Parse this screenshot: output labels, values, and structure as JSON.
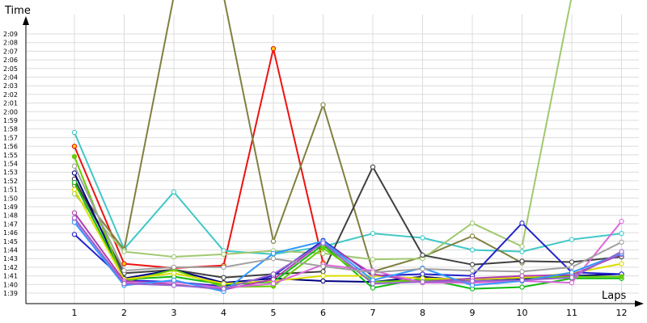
{
  "chart_data": {
    "type": "line",
    "ylabel": "Time",
    "xlabel": "Laps",
    "x": [
      1,
      2,
      3,
      4,
      5,
      6,
      7,
      8,
      9,
      10,
      11,
      12
    ],
    "ylim": [
      98.5,
      130.5
    ],
    "y_ticks": [
      99,
      100,
      101,
      102,
      103,
      104,
      105,
      106,
      107,
      108,
      109,
      110,
      111,
      112,
      113,
      114,
      115,
      116,
      117,
      118,
      119,
      120,
      121,
      122,
      123,
      124,
      125,
      126,
      127,
      128,
      129
    ],
    "y_tick_labels": [
      "1:39",
      "1:40",
      "1:41",
      "1:42",
      "1:43",
      "1:44",
      "1:45",
      "1:46",
      "1:47",
      "1:48",
      "1:49",
      "1:50",
      "1:51",
      "1:52",
      "1:53",
      "1:54",
      "1:55",
      "1:56",
      "1:57",
      "1:58",
      "1:59",
      "2:00",
      "2:01",
      "2:02",
      "2:03",
      "2:04",
      "2:05",
      "2:06",
      "2:07",
      "2:08",
      "2:09"
    ],
    "grid": true,
    "series": [
      {
        "color": "#ee1111",
        "marker_fill": "#ffcc00",
        "values": [
          116.0,
          102.4,
          101.9,
          102.2,
          127.3,
          102.5,
          null,
          null,
          null,
          null,
          null,
          null
        ]
      },
      {
        "color": "#40c8c8",
        "values": [
          117.6,
          104.1,
          110.7,
          103.9,
          103.5,
          104.4,
          105.9,
          105.4,
          104.0,
          103.8,
          105.2,
          105.9
        ]
      },
      {
        "color": "#808040",
        "values": [
          111.5,
          104.0,
          140.0,
          140.0,
          105.0,
          120.8,
          101.5,
          103.2,
          105.6,
          102.5,
          null,
          null
        ]
      },
      {
        "color": "#a0c870",
        "values": [
          110.5,
          103.8,
          103.2,
          103.5,
          103.9,
          103.6,
          102.9,
          103.0,
          107.1,
          104.4,
          140.0,
          null
        ]
      },
      {
        "color": "#404040",
        "values": [
          112.2,
          101.3,
          101.7,
          100.8,
          101.2,
          101.5,
          113.6,
          103.4,
          102.3,
          102.7,
          102.6,
          103.2
        ]
      },
      {
        "color": "#000080",
        "values": [
          112.9,
          100.7,
          101.7,
          100.2,
          100.7,
          100.4,
          100.3,
          100.9,
          100.4,
          100.6,
          101.0,
          101.2
        ]
      },
      {
        "color": "#2222cc",
        "values": [
          105.8,
          100.5,
          100.3,
          99.8,
          101.0,
          105.1,
          101.0,
          101.2,
          101.0,
          107.1,
          101.4,
          101.2
        ]
      },
      {
        "color": "#11bb11",
        "values": [
          111.8,
          100.6,
          100.9,
          100.0,
          100.3,
          104.6,
          99.6,
          100.7,
          99.5,
          99.7,
          100.7,
          100.7
        ]
      },
      {
        "color": "#66cc00",
        "marker_fill": "#66cc00",
        "values": [
          114.8,
          100.3,
          101.7,
          99.7,
          99.8,
          104.2,
          100.3,
          100.5,
          100.6,
          100.8,
          100.9,
          100.9
        ]
      },
      {
        "color": "#dddd00",
        "values": [
          111.0,
          100.6,
          101.3,
          100.1,
          100.4,
          101.0,
          101.0,
          100.7,
          100.6,
          100.8,
          101.3,
          102.4
        ]
      },
      {
        "color": "#b040b0",
        "values": [
          108.3,
          100.4,
          100.0,
          99.4,
          100.6,
          104.9,
          101.2,
          100.3,
          100.7,
          101.0,
          101.1,
          103.5
        ]
      },
      {
        "color": "#dd66dd",
        "values": [
          107.5,
          100.2,
          100.3,
          99.6,
          100.1,
          102.3,
          101.6,
          100.2,
          100.2,
          100.4,
          100.2,
          107.3
        ]
      },
      {
        "color": "#3399ff",
        "values": [
          107.2,
          99.9,
          100.5,
          99.2,
          103.6,
          105.0,
          100.5,
          101.9,
          99.9,
          100.4,
          101.4,
          103.6
        ]
      },
      {
        "color": "#9966cc",
        "values": [
          107.7,
          100.1,
          99.9,
          99.5,
          101.2,
          104.8,
          100.1,
          100.3,
          100.4,
          100.5,
          100.8,
          103.8
        ]
      },
      {
        "color": "#a0a0a0",
        "values": [
          113.7,
          101.6,
          102.0,
          102.0,
          103.0,
          102.1,
          101.4,
          101.8,
          101.6,
          101.5,
          102.0,
          104.9
        ]
      }
    ]
  }
}
